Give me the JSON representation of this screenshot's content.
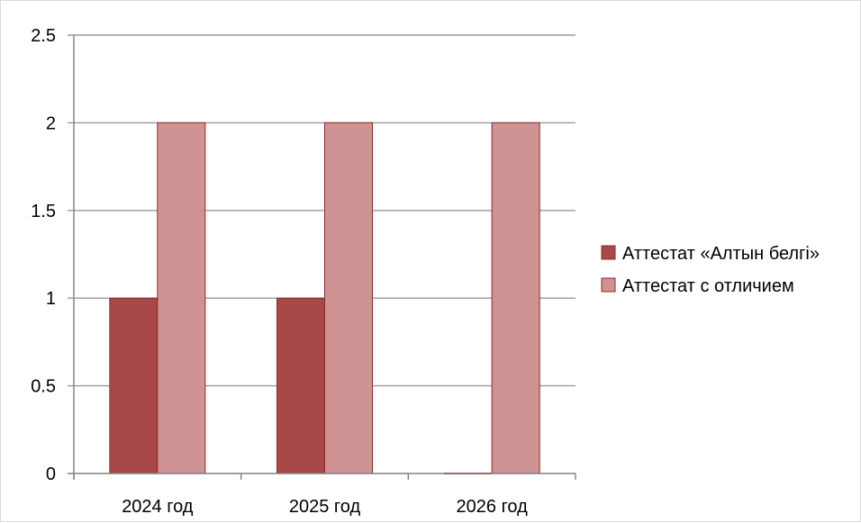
{
  "chart_data": {
    "type": "bar",
    "categories": [
      "2024 год",
      "2025 год",
      "2026 год"
    ],
    "series": [
      {
        "name": "Аттестат «Алтын белгі»",
        "values": [
          1,
          1,
          0
        ],
        "color": "#a84848"
      },
      {
        "name": "Аттестат с отличием",
        "values": [
          2,
          2,
          2
        ],
        "color": "#d09393"
      }
    ],
    "y_ticks": [
      "0",
      "0.5",
      "1",
      "1.5",
      "2",
      "2.5"
    ],
    "ylim": [
      0,
      2.5
    ],
    "title": "",
    "xlabel": "",
    "ylabel": "",
    "grid": true,
    "legend_position": "right",
    "colors": {
      "grid": "#9a9a9a",
      "axis": "#808080",
      "bar_stroke": "#8b2a2a"
    }
  }
}
